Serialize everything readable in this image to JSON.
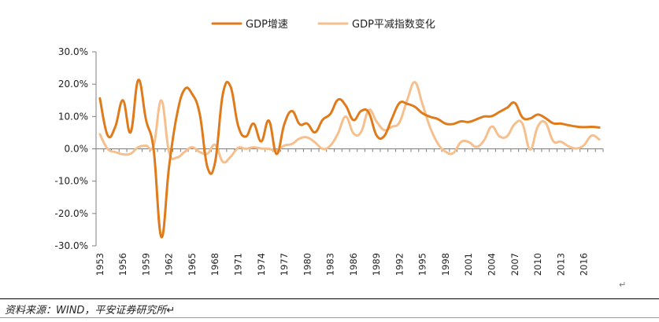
{
  "chart_data": {
    "type": "line",
    "title": "",
    "xlabel": "",
    "ylabel": "",
    "ylim": [
      -30,
      30
    ],
    "yticks": [
      30,
      20,
      10,
      0,
      -10,
      -20,
      -30
    ],
    "ytick_labels": [
      "30.0%",
      "20.0%",
      "10.0%",
      "0.0%",
      "-10.0%",
      "-20.0%",
      "-30.0%"
    ],
    "xtick_labels": [
      "1953",
      "1956",
      "1959",
      "1962",
      "1965",
      "1968",
      "1971",
      "1974",
      "1977",
      "1980",
      "1983",
      "1986",
      "1989",
      "1992",
      "1995",
      "1998",
      "2001",
      "2004",
      "2007",
      "2010",
      "2013",
      "2016"
    ],
    "x": [
      1953,
      1954,
      1955,
      1956,
      1957,
      1958,
      1959,
      1960,
      1961,
      1962,
      1963,
      1964,
      1965,
      1966,
      1967,
      1968,
      1969,
      1970,
      1971,
      1972,
      1973,
      1974,
      1975,
      1976,
      1977,
      1978,
      1979,
      1980,
      1981,
      1982,
      1983,
      1984,
      1985,
      1986,
      1987,
      1988,
      1989,
      1990,
      1991,
      1992,
      1993,
      1994,
      1995,
      1996,
      1997,
      1998,
      1999,
      2000,
      2001,
      2002,
      2003,
      2004,
      2005,
      2006,
      2007,
      2008,
      2009,
      2010,
      2011,
      2012,
      2013,
      2014,
      2015,
      2016,
      2017,
      2018
    ],
    "series": [
      {
        "name": "GDP增速",
        "color": "#E07B1C",
        "values": [
          15.6,
          4.2,
          6.8,
          15.0,
          5.1,
          21.3,
          9.0,
          -0.3,
          -27.3,
          -5.6,
          10.2,
          18.3,
          17.0,
          10.7,
          -5.7,
          -4.1,
          16.9,
          19.3,
          7.1,
          3.8,
          7.8,
          2.3,
          8.7,
          -1.6,
          7.6,
          11.7,
          7.6,
          7.8,
          5.1,
          9.0,
          10.8,
          15.2,
          13.4,
          8.9,
          11.7,
          11.2,
          4.2,
          3.9,
          9.3,
          14.2,
          13.9,
          13.0,
          11.0,
          9.9,
          9.2,
          7.8,
          7.7,
          8.5,
          8.3,
          9.1,
          10.0,
          10.1,
          11.4,
          12.7,
          14.2,
          9.7,
          9.4,
          10.6,
          9.5,
          7.9,
          7.8,
          7.3,
          6.9,
          6.7,
          6.8,
          6.6
        ]
      },
      {
        "name": "GDP平减指数变化",
        "color": "#F5C08E",
        "values": [
          4.5,
          0.0,
          -1.0,
          -1.7,
          -1.5,
          0.5,
          1.0,
          1.0,
          15.0,
          -1.0,
          -2.7,
          -1.0,
          0.5,
          -1.0,
          -1.5,
          1.2,
          -4.0,
          -2.5,
          0.3,
          0.0,
          0.5,
          0.1,
          0.0,
          -0.5,
          1.0,
          1.5,
          3.2,
          3.5,
          2.0,
          0.0,
          1.0,
          4.8,
          10.0,
          4.8,
          5.2,
          12.0,
          8.5,
          5.8,
          6.8,
          8.2,
          15.1,
          20.6,
          13.7,
          6.5,
          1.6,
          -0.9,
          -1.3,
          2.1,
          2.1,
          0.6,
          2.6,
          6.9,
          3.9,
          3.9,
          7.7,
          7.8,
          -0.2,
          6.9,
          8.1,
          2.4,
          2.2,
          0.8,
          0.1,
          1.1,
          4.1,
          2.9
        ]
      }
    ],
    "legend_position": "top-center",
    "grid": false
  },
  "footer": {
    "source_text": "资料来源：WIND，平安证券研究所↵"
  },
  "paragraph_mark": "↵"
}
